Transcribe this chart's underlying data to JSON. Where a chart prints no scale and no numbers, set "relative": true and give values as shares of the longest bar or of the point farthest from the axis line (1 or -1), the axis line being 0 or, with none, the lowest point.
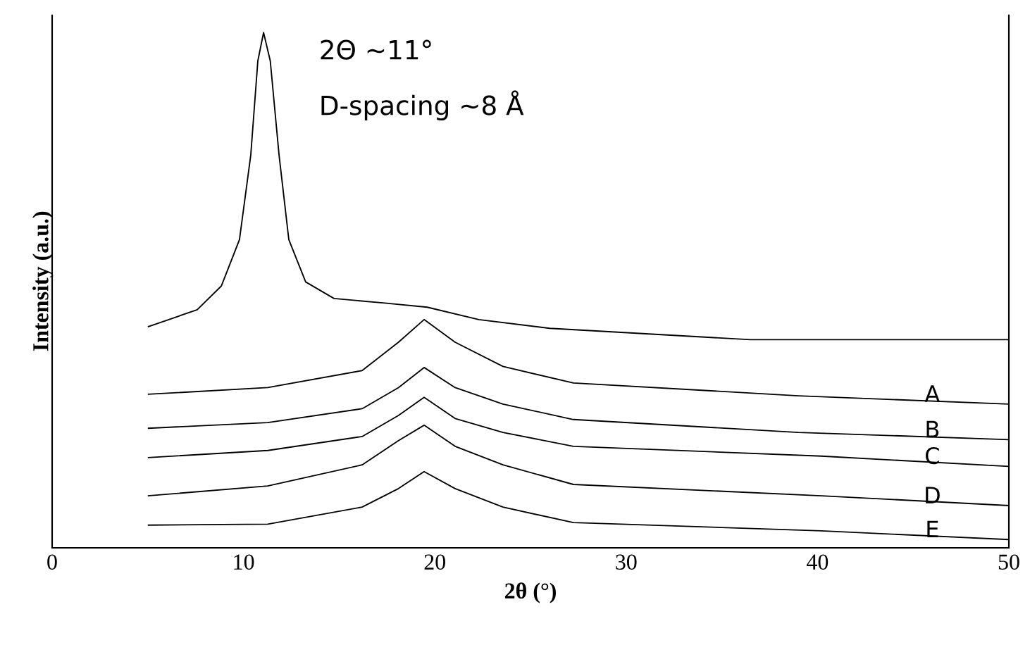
{
  "chart_data": {
    "type": "line",
    "relative": true,
    "xlabel": "**2θ** (°)",
    "ylabel": "Intensity (a.u.)",
    "xlim": [
      0,
      50
    ],
    "xticks": [
      0,
      10,
      20,
      30,
      40,
      50
    ],
    "annotations": [
      "2Θ ~11°",
      "D-spacing  ~8 Å"
    ],
    "line_style": "solid",
    "marker": "none",
    "series": [
      {
        "color": "#000000",
        "x": [
          5.0,
          7.58,
          8.84,
          9.79,
          10.38,
          10.75,
          11.05,
          11.4,
          11.86,
          12.37,
          13.25,
          14.73,
          17.38,
          19.6,
          22.3,
          26.0,
          36.5,
          50
        ],
        "values": [
          0.429,
          0.462,
          0.508,
          0.598,
          0.762,
          0.945,
          1,
          0.945,
          0.762,
          0.598,
          0.516,
          0.484,
          0.475,
          0.467,
          0.443,
          0.426,
          0.404,
          0.404
        ]
      },
      {
        "name": "A",
        "color": "#000000",
        "x": [
          5.0,
          11.27,
          16.2,
          18.1,
          19.44,
          21.06,
          23.56,
          27.24,
          39.0,
          50
        ],
        "values": [
          0.298,
          0.311,
          0.344,
          0.399,
          0.443,
          0.399,
          0.352,
          0.32,
          0.295,
          0.279
        ]
      },
      {
        "name": "B",
        "color": "#000000",
        "x": [
          5.0,
          11.27,
          16.2,
          18.1,
          19.44,
          21.06,
          23.56,
          27.24,
          39.0,
          50
        ],
        "values": [
          0.232,
          0.243,
          0.27,
          0.311,
          0.35,
          0.311,
          0.279,
          0.249,
          0.224,
          0.21
        ]
      },
      {
        "name": "C",
        "color": "#000000",
        "x": [
          5.0,
          11.27,
          16.2,
          18.1,
          19.44,
          21.06,
          23.56,
          27.24,
          40.2,
          50
        ],
        "values": [
          0.175,
          0.189,
          0.216,
          0.257,
          0.292,
          0.251,
          0.224,
          0.197,
          0.178,
          0.158
        ]
      },
      {
        "name": "D",
        "color": "#000000",
        "x": [
          5.0,
          11.27,
          16.2,
          18.1,
          19.44,
          21.06,
          23.56,
          27.24,
          40.2,
          50
        ],
        "values": [
          0.101,
          0.12,
          0.161,
          0.208,
          0.238,
          0.197,
          0.161,
          0.123,
          0.101,
          0.082
        ]
      },
      {
        "name": "E",
        "color": "#000000",
        "x": [
          5.0,
          11.27,
          16.2,
          18.1,
          19.44,
          21.06,
          23.56,
          27.24,
          40.2,
          50
        ],
        "values": [
          0.044,
          0.046,
          0.079,
          0.115,
          0.148,
          0.115,
          0.079,
          0.049,
          0.033,
          0.016
        ]
      }
    ]
  }
}
